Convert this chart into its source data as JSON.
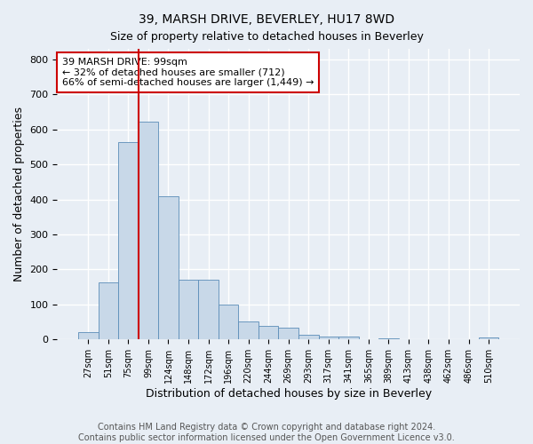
{
  "title": "39, MARSH DRIVE, BEVERLEY, HU17 8WD",
  "subtitle": "Size of property relative to detached houses in Beverley",
  "xlabel": "Distribution of detached houses by size in Beverley",
  "ylabel": "Number of detached properties",
  "bar_labels": [
    "27sqm",
    "51sqm",
    "75sqm",
    "99sqm",
    "124sqm",
    "148sqm",
    "172sqm",
    "196sqm",
    "220sqm",
    "244sqm",
    "269sqm",
    "293sqm",
    "317sqm",
    "341sqm",
    "365sqm",
    "389sqm",
    "413sqm",
    "438sqm",
    "462sqm",
    "486sqm",
    "510sqm"
  ],
  "bar_values": [
    20,
    163,
    563,
    621,
    410,
    170,
    170,
    100,
    52,
    40,
    33,
    13,
    9,
    8,
    0,
    4,
    0,
    0,
    0,
    0,
    7
  ],
  "bar_color": "#c8d8e8",
  "bar_edge_color": "#5b8db8",
  "vline_color": "#cc0000",
  "annotation_line1": "39 MARSH DRIVE: 99sqm",
  "annotation_line2": "← 32% of detached houses are smaller (712)",
  "annotation_line3": "66% of semi-detached houses are larger (1,449) →",
  "annotation_box_color": "#ffffff",
  "annotation_box_edge": "#cc0000",
  "ylim": [
    0,
    830
  ],
  "yticks": [
    0,
    100,
    200,
    300,
    400,
    500,
    600,
    700,
    800
  ],
  "footer": "Contains HM Land Registry data © Crown copyright and database right 2024.\nContains public sector information licensed under the Open Government Licence v3.0.",
  "background_color": "#e8eef5",
  "plot_background_color": "#e8eef5",
  "grid_color": "#ffffff",
  "title_fontsize": 10,
  "footer_fontsize": 7
}
